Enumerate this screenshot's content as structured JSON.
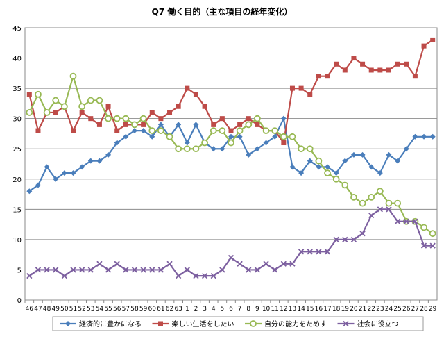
{
  "chart_data": {
    "type": "line",
    "title": "Q7 働く目的（主な項目の経年変化）",
    "xlabel": "",
    "ylabel": "",
    "ylim": [
      0,
      45
    ],
    "yticks": [
      0,
      5,
      10,
      15,
      20,
      25,
      30,
      35,
      40,
      45
    ],
    "grid": true,
    "legend_position": "bottom",
    "categories": [
      "46",
      "47",
      "48",
      "49",
      "50",
      "51",
      "52",
      "53",
      "54",
      "55",
      "56",
      "57",
      "58",
      "59",
      "60",
      "61",
      "62",
      "63",
      "1",
      "2",
      "3",
      "4",
      "5",
      "6",
      "7",
      "8",
      "9",
      "10",
      "11",
      "12",
      "13",
      "14",
      "15",
      "16",
      "17",
      "18",
      "19",
      "20",
      "21",
      "22",
      "23",
      "24",
      "25",
      "26",
      "27",
      "28",
      "29"
    ],
    "series": [
      {
        "name": "経済的に豊かになる",
        "color": "#4a7ebb",
        "marker": "diamond",
        "values": [
          18,
          19,
          22,
          20,
          21,
          21,
          22,
          23,
          23,
          24,
          26,
          27,
          28,
          28,
          27,
          29,
          27,
          29,
          26,
          29,
          26,
          25,
          25,
          27,
          27,
          24,
          25,
          26,
          27,
          30,
          22,
          21,
          23,
          22,
          22,
          21,
          23,
          24,
          24,
          22,
          21,
          24,
          23,
          25,
          27,
          27,
          27
        ]
      },
      {
        "name": "楽しい生活をしたい",
        "color": "#be4b48",
        "marker": "square",
        "values": [
          34,
          28,
          31,
          31,
          32,
          28,
          31,
          30,
          29,
          32,
          28,
          29,
          29,
          29,
          31,
          30,
          31,
          32,
          35,
          34,
          32,
          29,
          30,
          28,
          29,
          30,
          29,
          28,
          28,
          26,
          35,
          35,
          34,
          37,
          37,
          39,
          38,
          40,
          39,
          38,
          38,
          38,
          39,
          39,
          37,
          42,
          43
        ]
      },
      {
        "name": "自分の能力をためす",
        "color": "#98b954",
        "marker": "circle",
        "values": [
          31,
          34,
          31,
          33,
          32,
          37,
          32,
          33,
          33,
          30,
          30,
          30,
          29,
          30,
          28,
          28,
          27,
          25,
          25,
          25,
          26,
          28,
          28,
          26,
          28,
          29,
          30,
          28,
          28,
          27,
          27,
          25,
          25,
          23,
          21,
          20,
          19,
          17,
          16,
          17,
          18,
          16,
          16,
          13,
          13,
          12,
          11
        ]
      },
      {
        "name": "社会に役立つ",
        "color": "#7d60a0",
        "marker": "x",
        "values": [
          4,
          5,
          5,
          5,
          4,
          5,
          5,
          5,
          6,
          5,
          6,
          5,
          5,
          5,
          5,
          5,
          6,
          4,
          5,
          4,
          4,
          4,
          5,
          7,
          6,
          5,
          5,
          6,
          5,
          6,
          6,
          8,
          8,
          8,
          8,
          10,
          10,
          10,
          11,
          14,
          15,
          15,
          13,
          13,
          13,
          9,
          9
        ]
      }
    ]
  }
}
